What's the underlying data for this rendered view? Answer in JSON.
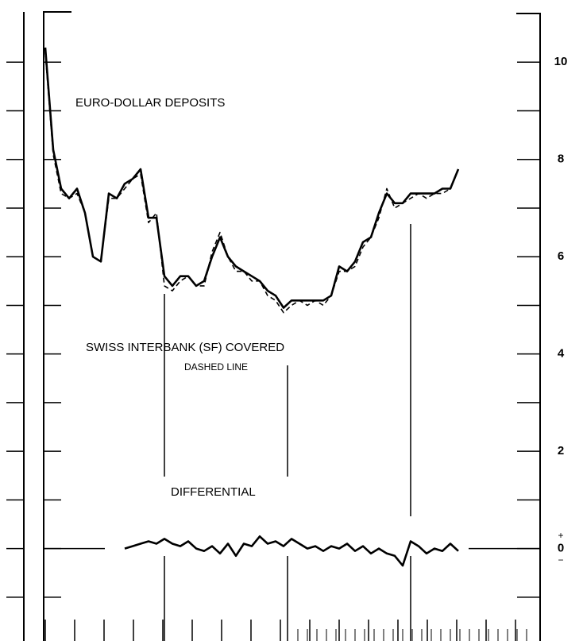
{
  "chart_data": {
    "type": "line",
    "series": [
      {
        "name": "EURO-DOLLAR DEPOSITS",
        "color": "#000000",
        "dash": false,
        "values": [
          10.3,
          8.2,
          7.4,
          7.2,
          7.4,
          6.9,
          6.0,
          5.9,
          7.3,
          7.2,
          7.5,
          7.6,
          7.8,
          6.8,
          6.8,
          5.6,
          5.4,
          5.6,
          5.6,
          5.4,
          5.5,
          6.0,
          6.4,
          6.0,
          5.8,
          5.7,
          5.6,
          5.5,
          5.3,
          5.2,
          4.95,
          5.1,
          5.1,
          5.1,
          5.1,
          5.1,
          5.2,
          5.8,
          5.7,
          5.9,
          6.3,
          6.4,
          6.9,
          7.3,
          7.1,
          7.1,
          7.3,
          7.3,
          7.3,
          7.3,
          7.4,
          7.4,
          7.8
        ]
      },
      {
        "name": "SWISS INTERBANK (SF) COVERED",
        "color": "#000000",
        "dash": true,
        "values": [
          10.2,
          8.1,
          7.3,
          7.2,
          7.3,
          6.9,
          6.0,
          5.9,
          7.2,
          7.2,
          7.4,
          7.6,
          7.7,
          6.7,
          6.9,
          5.4,
          5.3,
          5.5,
          5.6,
          5.4,
          5.4,
          6.1,
          6.5,
          6.0,
          5.7,
          5.7,
          5.5,
          5.5,
          5.2,
          5.1,
          4.85,
          5.0,
          5.1,
          5.0,
          5.1,
          5.0,
          5.2,
          5.7,
          5.7,
          5.8,
          6.2,
          6.4,
          6.8,
          7.4,
          7.0,
          7.1,
          7.2,
          7.3,
          7.2,
          7.3,
          7.3,
          7.4,
          7.8
        ]
      },
      {
        "name": "DIFFERENTIAL",
        "color": "#000000",
        "dash": false,
        "values": [
          null,
          null,
          null,
          null,
          null,
          null,
          null,
          null,
          null,
          null,
          0.0,
          0.05,
          0.1,
          0.15,
          0.1,
          0.2,
          0.1,
          0.05,
          0.15,
          0.0,
          -0.05,
          0.05,
          -0.1,
          0.1,
          -0.15,
          0.1,
          0.05,
          0.25,
          0.1,
          0.15,
          0.05,
          0.2,
          0.1,
          0.0,
          0.05,
          -0.05,
          0.05,
          0.0,
          0.1,
          -0.05,
          0.05,
          -0.1,
          0.0,
          -0.1,
          -0.15,
          -0.35,
          0.15,
          0.05,
          -0.1,
          0.0,
          -0.05,
          0.1,
          -0.05
        ]
      }
    ],
    "annotations": [
      "DASHED LINE"
    ],
    "zero_signs": {
      "above": "+",
      "below": "−"
    },
    "ylim": [
      -1.9,
      11
    ],
    "yticks": [
      0,
      2,
      4,
      6,
      8,
      10
    ],
    "yminor_ticks": [
      -1,
      1,
      3,
      5,
      7,
      9
    ]
  }
}
